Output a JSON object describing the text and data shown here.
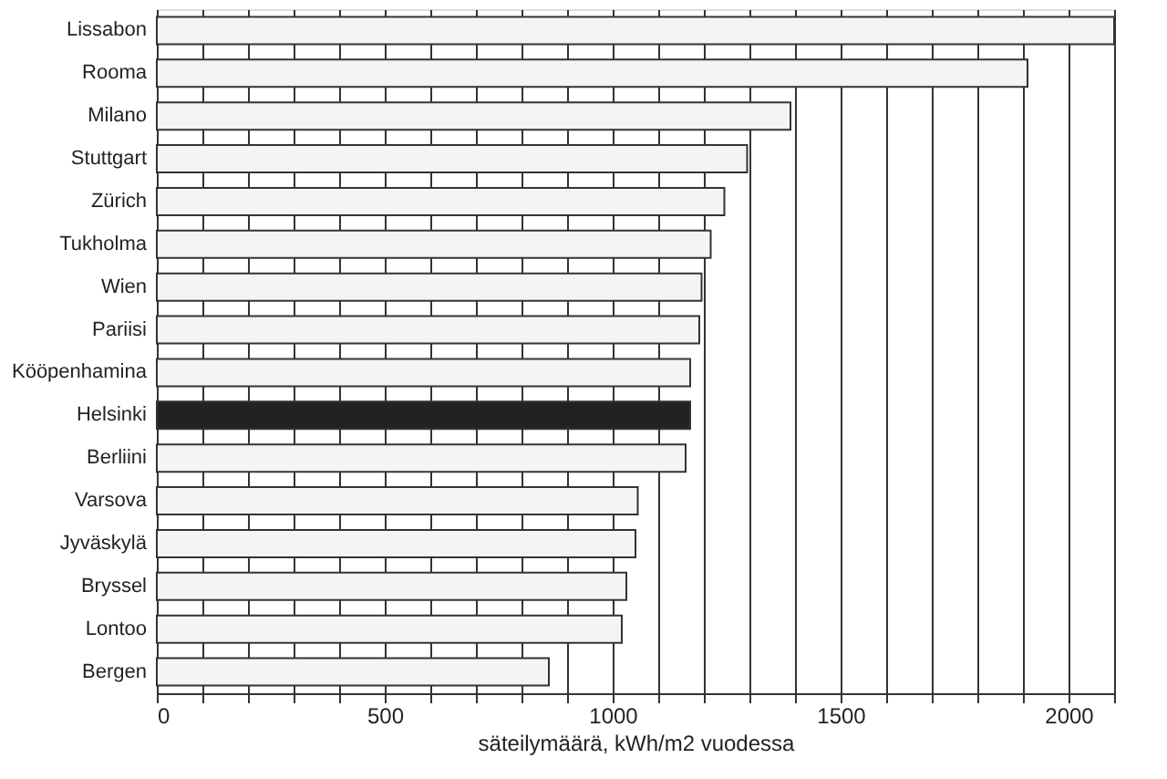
{
  "chart_data": {
    "type": "bar",
    "orientation": "horizontal",
    "xlabel": "säteilymäärä, kWh/m2 vuodessa",
    "categories": [
      "Lissabon",
      "Rooma",
      "Milano",
      "Stuttgart",
      "Zürich",
      "Tukholma",
      "Wien",
      "Pariisi",
      "Kööpenhamina",
      "Helsinki",
      "Berliini",
      "Varsova",
      "Jyväskylä",
      "Bryssel",
      "Lontoo",
      "Bergen"
    ],
    "values": [
      2100,
      1910,
      1390,
      1295,
      1245,
      1215,
      1195,
      1190,
      1170,
      1170,
      1160,
      1055,
      1050,
      1030,
      1020,
      860
    ],
    "colors": [
      "#f4f4f4",
      "#f4f4f4",
      "#f4f4f4",
      "#f4f4f4",
      "#f4f4f4",
      "#f4f4f4",
      "#f4f4f4",
      "#f4f4f4",
      "#f4f4f4",
      "#222222",
      "#f4f4f4",
      "#f4f4f4",
      "#f4f4f4",
      "#f4f4f4",
      "#f4f4f4",
      "#f4f4f4"
    ],
    "xlim": [
      0,
      2100
    ],
    "xticks": [
      0,
      {
        "value": 100,
        "label": null
      },
      {
        "value": 200,
        "label": null
      },
      {
        "value": 300,
        "label": null
      },
      {
        "value": 400,
        "label": null
      },
      500,
      {
        "value": 600,
        "label": null
      },
      {
        "value": 700,
        "label": null
      },
      {
        "value": 800,
        "label": null
      },
      {
        "value": 900,
        "label": null
      },
      1000,
      {
        "value": 1100,
        "label": null
      },
      {
        "value": 1200,
        "label": null
      },
      {
        "value": 1300,
        "label": null
      },
      {
        "value": 1400,
        "label": null
      },
      1500,
      {
        "value": 1600,
        "label": null
      },
      {
        "value": 1700,
        "label": null
      },
      {
        "value": 1800,
        "label": null
      },
      {
        "value": 1900,
        "label": null
      },
      2000,
      {
        "value": 2100,
        "label": null
      }
    ],
    "grid": "x"
  }
}
